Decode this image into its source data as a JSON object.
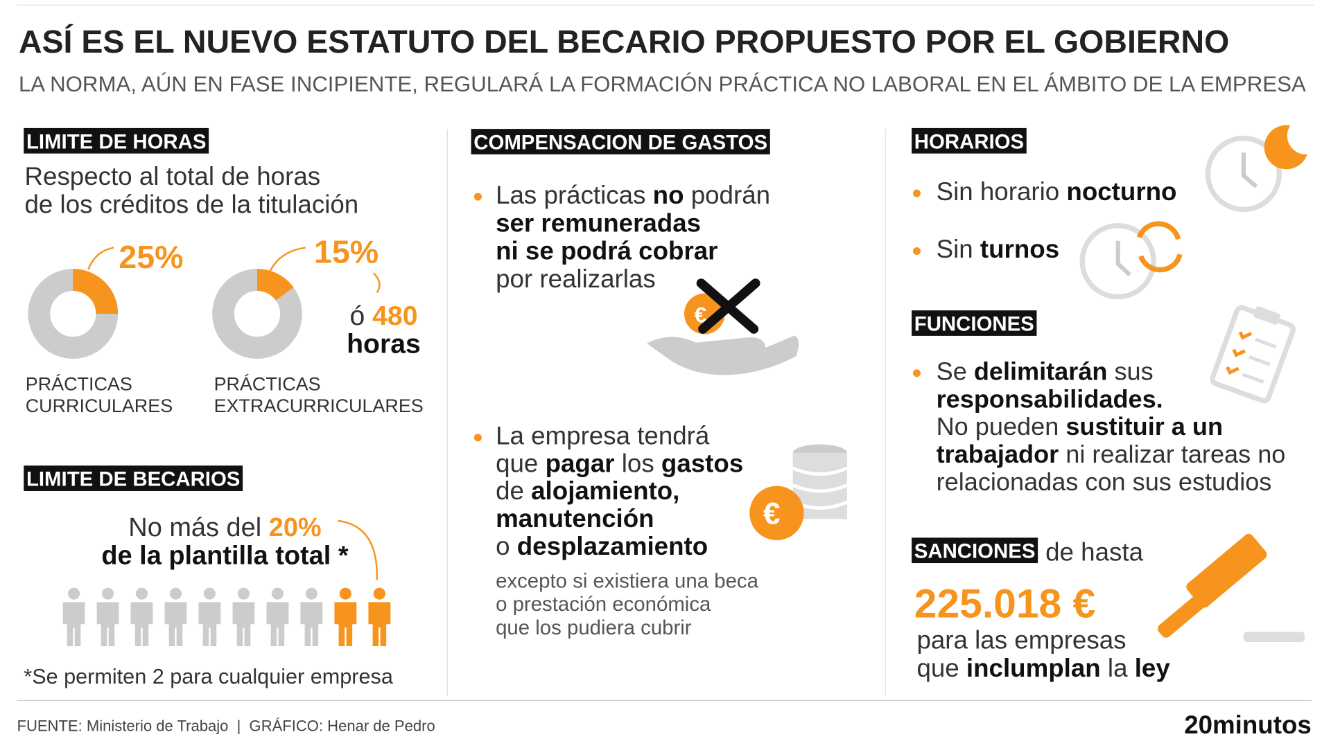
{
  "header": {
    "title": "ASÍ ES EL NUEVO ESTATUTO DEL BECARIO PROPUESTO POR EL GOBIERNO",
    "subtitle": "LA NORMA, AÚN EN FASE INCIPIENTE, REGULARÁ LA FORMACIÓN PRÁCTICA NO LABORAL EN EL ÁMBITO DE LA EMPRESA"
  },
  "limite_horas": {
    "heading": "LIMITE DE HORAS",
    "intro": [
      "Respecto al total de horas",
      "de los créditos de la titulación"
    ],
    "donuts": [
      {
        "value": 25,
        "label": "25%",
        "caption": [
          "PRÁCTICAS",
          "CURRICULARES"
        ]
      },
      {
        "value": 15,
        "label": "15%",
        "caption": [
          "PRÁCTICAS",
          "EXTRACURRICULARES"
        ]
      }
    ],
    "alternative": [
      [
        {
          "text": "ó "
        },
        {
          "text": "480",
          "style": "orange"
        }
      ],
      [
        {
          "text": "horas",
          "style": "bold"
        }
      ]
    ]
  },
  "limite_becarios": {
    "heading": "LIMITE DE BECARIOS",
    "lines": [
      [
        {
          "text": "No más del "
        },
        {
          "text": "20%",
          "style": "orange"
        }
      ],
      [
        {
          "text": "de la plantilla total *",
          "style": "bold"
        }
      ]
    ],
    "footnote": "*Se permiten 2 para cualquier empresa"
  },
  "compensacion": {
    "heading": "COMPENSACION DE GASTOS",
    "item1": [
      [
        {
          "text": "Las prácticas "
        },
        {
          "text": "no",
          "style": "bold"
        },
        {
          "text": " podrán"
        }
      ],
      [
        {
          "text": "ser remuneradas",
          "style": "bold"
        }
      ],
      [
        {
          "text": "ni se podrá cobrar",
          "style": "bold"
        }
      ],
      [
        {
          "text": "por realizarlas"
        }
      ]
    ],
    "item2": [
      [
        {
          "text": "La empresa tendrá"
        }
      ],
      [
        {
          "text": "que "
        },
        {
          "text": "pagar",
          "style": "bold"
        },
        {
          "text": " los "
        },
        {
          "text": "gastos",
          "style": "bold"
        }
      ],
      [
        {
          "text": "de "
        },
        {
          "text": "alojamiento,",
          "style": "bold"
        }
      ],
      [
        {
          "text": "manutención",
          "style": "bold"
        }
      ],
      [
        {
          "text": "o "
        },
        {
          "text": "desplazamiento",
          "style": "bold"
        }
      ]
    ],
    "note": [
      "excepto si existiera una beca",
      "o prestación económica",
      "que los pudiera cubrir"
    ]
  },
  "horarios": {
    "heading": "HORARIOS",
    "item1": [
      [
        {
          "text": "Sin horario "
        },
        {
          "text": "nocturno",
          "style": "bold"
        }
      ]
    ],
    "item2": [
      [
        {
          "text": "Sin "
        },
        {
          "text": "turnos",
          "style": "bold"
        }
      ]
    ]
  },
  "funciones": {
    "heading": "FUNCIONES",
    "lines": [
      [
        {
          "text": "Se "
        },
        {
          "text": "delimitarán",
          "style": "bold"
        },
        {
          "text": " sus"
        }
      ],
      [
        {
          "text": "responsabilidades.",
          "style": "bold"
        }
      ],
      [
        {
          "text": "No pueden "
        },
        {
          "text": "sustituir a un",
          "style": "bold"
        }
      ],
      [
        {
          "text": "trabajador",
          "style": "bold"
        },
        {
          "text": " ni realizar tareas no"
        }
      ],
      [
        {
          "text": "relacionadas con sus estudios"
        }
      ]
    ]
  },
  "sanciones": {
    "heading": "SANCIONES",
    "after": "de hasta",
    "amount": "225.018 €",
    "lines": [
      [
        {
          "text": "para las empresas"
        }
      ],
      [
        {
          "text": "que "
        },
        {
          "text": "inclumplan",
          "style": "bold"
        },
        {
          "text": " la "
        },
        {
          "text": "ley",
          "style": "bold"
        }
      ]
    ]
  },
  "footer": {
    "source": "FUENTE: Ministerio de Trabajo  |  GRÁFICO: Henar de Pedro",
    "brand": "20minutos"
  }
}
